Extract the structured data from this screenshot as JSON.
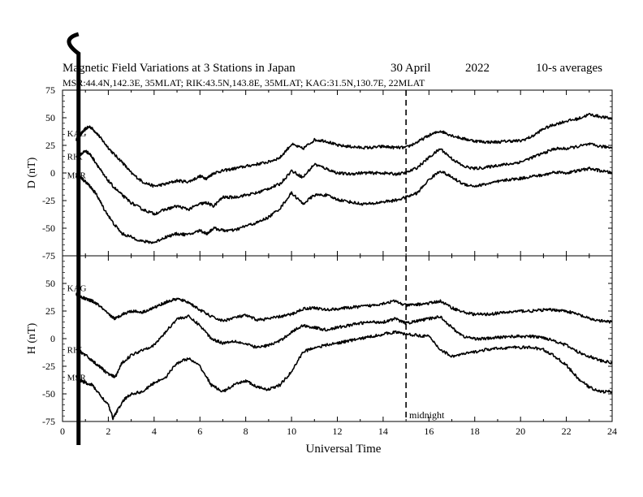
{
  "chart_data": [
    {
      "type": "line",
      "panel": "D",
      "title": "Magnetic Field Variations at 3 Stations in Japan",
      "date": "30 April",
      "year": "2022",
      "averaging": "10-s averages",
      "stations_line": "MSR:44.4N,142.3E, 35MLAT;  RIK:43.5N,143.8E, 35MLAT;  KAG:31.5N,130.7E, 22MLAT",
      "ylabel": "D (nT)",
      "xlabel": "Universal Time",
      "xlim": [
        0,
        24
      ],
      "ylim": [
        -75,
        75
      ],
      "yticks": [
        -75,
        -50,
        -25,
        0,
        25,
        50,
        75
      ],
      "series": [
        {
          "name": "KAG",
          "label_position": "top",
          "x": [
            0.6,
            0.8,
            1.0,
            1.2,
            1.5,
            1.8,
            2.2,
            2.6,
            3.0,
            3.5,
            4.0,
            4.5,
            5.0,
            5.5,
            6.0,
            6.3,
            6.6,
            7.0,
            7.5,
            8.0,
            8.5,
            9.0,
            9.5,
            10.0,
            10.5,
            11.0,
            11.5,
            12.0,
            12.5,
            13.0,
            13.5,
            14.0,
            14.5,
            15.0,
            15.5,
            16.0,
            16.5,
            17.0,
            17.5,
            18.0,
            18.5,
            19.0,
            19.5,
            20.0,
            20.5,
            21.0,
            21.5,
            22.0,
            22.5,
            23.0,
            23.5,
            24.0
          ],
          "y": [
            30,
            35,
            40,
            42,
            36,
            28,
            18,
            10,
            0,
            -8,
            -12,
            -10,
            -7,
            -8,
            -3,
            -5,
            0,
            2,
            4,
            6,
            8,
            10,
            14,
            26,
            22,
            30,
            29,
            25,
            24,
            23,
            23,
            24,
            23,
            23,
            28,
            34,
            38,
            34,
            31,
            29,
            28,
            28,
            29,
            29,
            33,
            40,
            44,
            47,
            49,
            53,
            51,
            49
          ]
        },
        {
          "name": "RIK",
          "label_position": "middle",
          "x": [
            0.6,
            0.8,
            1.0,
            1.2,
            1.5,
            1.8,
            2.2,
            2.6,
            3.0,
            3.5,
            4.0,
            4.5,
            5.0,
            5.5,
            6.0,
            6.3,
            6.6,
            7.0,
            7.5,
            8.0,
            8.5,
            9.0,
            9.5,
            10.0,
            10.5,
            11.0,
            11.5,
            12.0,
            12.5,
            13.0,
            13.5,
            14.0,
            14.5,
            15.0,
            15.5,
            16.0,
            16.5,
            17.0,
            17.5,
            18.0,
            18.5,
            19.0,
            19.5,
            20.0,
            20.5,
            21.0,
            21.5,
            22.0,
            22.5,
            23.0,
            23.5,
            24.0
          ],
          "y": [
            15,
            17,
            20,
            17,
            8,
            -2,
            -12,
            -20,
            -27,
            -33,
            -37,
            -33,
            -30,
            -33,
            -28,
            -27,
            -30,
            -22,
            -22,
            -20,
            -18,
            -14,
            -10,
            2,
            -4,
            8,
            4,
            0,
            -1,
            0,
            0,
            0,
            -1,
            0,
            5,
            14,
            22,
            13,
            6,
            4,
            5,
            7,
            8,
            10,
            14,
            18,
            22,
            22,
            24,
            26,
            24,
            23
          ]
        },
        {
          "name": "MSR",
          "label_position": "lower",
          "x": [
            0.6,
            0.8,
            1.0,
            1.2,
            1.5,
            1.8,
            2.2,
            2.6,
            3.0,
            3.5,
            4.0,
            4.5,
            5.0,
            5.5,
            6.0,
            6.3,
            6.6,
            7.0,
            7.5,
            8.0,
            8.5,
            9.0,
            9.5,
            10.0,
            10.5,
            11.0,
            11.5,
            12.0,
            12.5,
            13.0,
            13.5,
            14.0,
            14.5,
            15.0,
            15.5,
            16.0,
            16.5,
            17.0,
            17.5,
            18.0,
            18.5,
            19.0,
            19.5,
            20.0,
            20.5,
            21.0,
            21.5,
            22.0,
            22.5,
            23.0,
            23.5,
            24.0
          ],
          "y": [
            -2,
            -4,
            -8,
            -12,
            -20,
            -32,
            -45,
            -55,
            -58,
            -62,
            -63,
            -58,
            -55,
            -56,
            -52,
            -55,
            -50,
            -52,
            -52,
            -48,
            -45,
            -40,
            -32,
            -18,
            -28,
            -20,
            -20,
            -24,
            -26,
            -28,
            -28,
            -26,
            -25,
            -22,
            -18,
            -6,
            2,
            -4,
            -10,
            -12,
            -10,
            -8,
            -6,
            -5,
            -3,
            -2,
            1,
            0,
            2,
            4,
            2,
            0
          ]
        }
      ],
      "annotations": [
        {
          "text": "",
          "x": 15,
          "style": "dashed vertical line"
        }
      ],
      "grid": false
    },
    {
      "type": "line",
      "panel": "H",
      "ylabel": "H (nT)",
      "xlabel": "Universal Time",
      "xlim": [
        0,
        24
      ],
      "ylim": [
        -75,
        75
      ],
      "yticks": [
        -75,
        -50,
        -25,
        0,
        25,
        50,
        75
      ],
      "xticks": [
        0,
        2,
        4,
        6,
        8,
        10,
        12,
        14,
        16,
        18,
        20,
        22,
        24
      ],
      "series": [
        {
          "name": "KAG",
          "label_position": "top",
          "x": [
            0.6,
            0.8,
            1.0,
            1.3,
            1.6,
            2.0,
            2.3,
            2.6,
            3.0,
            3.5,
            4.0,
            4.5,
            5.0,
            5.5,
            6.0,
            6.5,
            7.0,
            7.5,
            8.0,
            8.5,
            9.0,
            9.5,
            10.0,
            10.5,
            11.0,
            11.5,
            12.0,
            12.5,
            13.0,
            13.5,
            14.0,
            14.5,
            15.0,
            15.5,
            16.0,
            16.5,
            17.0,
            17.5,
            18.0,
            18.5,
            19.0,
            19.5,
            20.0,
            20.5,
            21.0,
            21.5,
            22.0,
            22.5,
            23.0,
            23.5,
            24.0
          ],
          "y": [
            40,
            38,
            36,
            34,
            30,
            22,
            18,
            22,
            25,
            24,
            28,
            33,
            36,
            33,
            26,
            20,
            16,
            19,
            21,
            17,
            18,
            20,
            22,
            27,
            28,
            26,
            27,
            28,
            29,
            30,
            32,
            34,
            30,
            31,
            32,
            34,
            28,
            24,
            22,
            22,
            23,
            24,
            25,
            25,
            26,
            26,
            25,
            22,
            18,
            16,
            15
          ]
        },
        {
          "name": "RIK",
          "label_position": "middle",
          "x": [
            0.6,
            0.8,
            1.0,
            1.3,
            1.6,
            2.0,
            2.3,
            2.6,
            3.0,
            3.5,
            4.0,
            4.5,
            5.0,
            5.5,
            6.0,
            6.5,
            7.0,
            7.5,
            8.0,
            8.5,
            9.0,
            9.5,
            10.0,
            10.5,
            11.0,
            11.5,
            12.0,
            12.5,
            13.0,
            13.5,
            14.0,
            14.5,
            15.0,
            15.5,
            16.0,
            16.5,
            17.0,
            17.5,
            18.0,
            18.5,
            19.0,
            19.5,
            20.0,
            20.5,
            21.0,
            21.5,
            22.0,
            22.5,
            23.0,
            23.5,
            24.0
          ],
          "y": [
            -10,
            -12,
            -15,
            -20,
            -25,
            -32,
            -35,
            -22,
            -15,
            -10,
            -6,
            6,
            18,
            20,
            12,
            0,
            -4,
            -2,
            -5,
            -8,
            -6,
            -2,
            6,
            12,
            10,
            8,
            10,
            12,
            14,
            15,
            15,
            18,
            14,
            16,
            18,
            20,
            10,
            2,
            0,
            0,
            1,
            2,
            2,
            2,
            1,
            -2,
            -6,
            -12,
            -16,
            -20,
            -22
          ]
        },
        {
          "name": "MSR",
          "label_position": "lower",
          "x": [
            0.6,
            0.8,
            1.0,
            1.3,
            1.6,
            2.0,
            2.2,
            2.4,
            2.7,
            3.0,
            3.5,
            4.0,
            4.5,
            5.0,
            5.5,
            6.0,
            6.5,
            7.0,
            7.5,
            8.0,
            8.5,
            9.0,
            9.5,
            10.0,
            10.5,
            11.0,
            11.5,
            12.0,
            12.5,
            13.0,
            13.5,
            14.0,
            14.5,
            15.0,
            15.5,
            16.0,
            16.5,
            17.0,
            17.5,
            18.0,
            18.5,
            19.0,
            19.5,
            20.0,
            20.5,
            21.0,
            21.5,
            22.0,
            22.5,
            23.0,
            23.5,
            24.0
          ],
          "y": [
            -35,
            -38,
            -40,
            -42,
            -50,
            -60,
            -72,
            -65,
            -55,
            -50,
            -48,
            -40,
            -35,
            -22,
            -18,
            -25,
            -42,
            -48,
            -42,
            -38,
            -44,
            -46,
            -42,
            -30,
            -12,
            -8,
            -6,
            -4,
            -2,
            0,
            2,
            4,
            6,
            4,
            3,
            2,
            -10,
            -16,
            -14,
            -12,
            -10,
            -9,
            -8,
            -8,
            -8,
            -10,
            -16,
            -24,
            -36,
            -44,
            -48,
            -48
          ]
        }
      ],
      "annotations": [
        {
          "text": "midnight",
          "x": 15,
          "style": "dashed vertical line"
        }
      ],
      "grid": false
    }
  ]
}
